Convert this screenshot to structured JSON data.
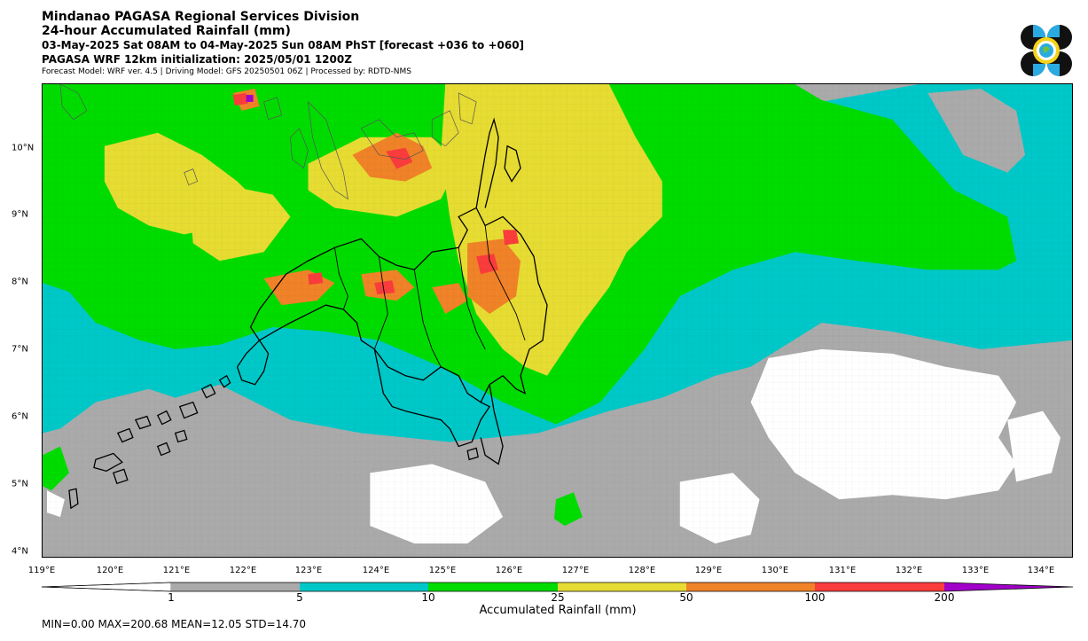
{
  "header": {
    "title_line1": "Mindanao PAGASA Regional Services Division",
    "title_line2": "24-hour Accumulated Rainfall (mm)",
    "valid_period": "03-May-2025 Sat 08AM to 04-May-2025 Sun 08AM PhST [forecast +036 to +060]",
    "init_line": "PAGASA WRF 12km initialization: 2025/05/01 1200Z",
    "model_line": "Forecast Model: WRF ver. 4.5 | Driving Model: GFS 20250501 06Z | Processed by: RDTD-NMS"
  },
  "logo": {
    "icon": "pagasa-logo-icon"
  },
  "map": {
    "x_ticks": [
      "119°E",
      "120°E",
      "121°E",
      "122°E",
      "123°E",
      "124°E",
      "125°E",
      "126°E",
      "127°E",
      "128°E",
      "129°E",
      "130°E",
      "131°E",
      "132°E",
      "133°E",
      "134°E"
    ],
    "y_ticks": [
      "10°N",
      "9°N",
      "8°N",
      "7°N",
      "6°N",
      "5°N",
      "4°N"
    ]
  },
  "colorbar": {
    "title": "Accumulated Rainfall (mm)",
    "labels": [
      "1",
      "5",
      "10",
      "25",
      "50",
      "100",
      "200"
    ],
    "colors": {
      "lt1": "#ffffff",
      "r1_5": "#aaaaaa",
      "r5_10": "#00c8c8",
      "r10_25": "#00dc00",
      "r25_50": "#e6dc32",
      "r50_100": "#f08228",
      "r100_200": "#fa3c3c",
      "gt200": "#a000c8"
    }
  },
  "stats": {
    "text": "MIN=0.00   MAX=200.68   MEAN=12.05   STD=14.70"
  }
}
